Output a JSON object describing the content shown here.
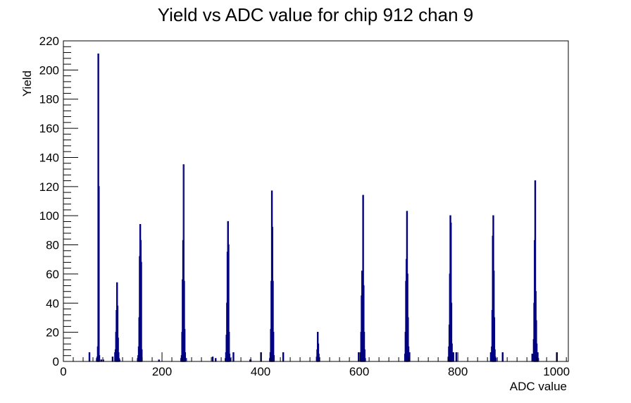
{
  "chart_data": {
    "type": "bar",
    "title": "Yield vs ADC value for chip 912 chan 9",
    "xlabel": "ADC value",
    "ylabel": "Yield",
    "xlim": [
      0,
      1024
    ],
    "ylim": [
      0,
      220
    ],
    "x_ticks": [
      0,
      200,
      400,
      600,
      800,
      1000
    ],
    "y_ticks": [
      0,
      20,
      40,
      60,
      80,
      100,
      120,
      140,
      160,
      180,
      200,
      220
    ],
    "grid": false,
    "legend": "none",
    "line_color": "#000080",
    "series": [
      {
        "x": [
          52,
          67,
          68,
          69,
          70,
          71,
          72,
          76,
          80,
          99,
          104,
          105,
          106,
          107,
          108,
          109,
          110,
          111,
          112,
          113,
          150,
          151,
          152,
          153,
          154,
          155,
          156,
          157,
          158,
          193,
          238,
          239,
          240,
          241,
          242,
          243,
          244,
          245,
          246,
          248,
          302,
          308,
          328,
          329,
          330,
          331,
          332,
          333,
          334,
          335,
          336,
          337,
          344,
          378,
          379,
          400,
          418,
          419,
          420,
          421,
          422,
          423,
          424,
          425,
          426,
          445,
          513,
          514,
          515,
          516,
          517,
          518,
          598,
          602,
          603,
          604,
          605,
          606,
          607,
          608,
          609,
          610,
          611,
          692,
          693,
          694,
          695,
          696,
          697,
          698,
          699,
          701,
          780,
          781,
          782,
          783,
          784,
          785,
          786,
          787,
          788,
          790,
          796,
          866,
          868,
          869,
          870,
          871,
          872,
          873,
          874,
          875,
          876,
          890,
          950,
          953,
          954,
          955,
          956,
          957,
          958,
          959,
          960,
          961,
          962,
          1000
        ],
        "values": [
          6,
          2,
          3,
          10,
          211,
          120,
          4,
          1,
          1,
          3,
          6,
          8,
          20,
          35,
          54,
          38,
          16,
          6,
          2,
          1,
          2,
          4,
          10,
          30,
          72,
          94,
          83,
          68,
          8,
          1,
          2,
          4,
          20,
          56,
          83,
          135,
          55,
          22,
          6,
          2,
          3,
          2,
          2,
          6,
          18,
          40,
          75,
          96,
          80,
          20,
          5,
          2,
          6,
          1,
          1,
          6,
          2,
          6,
          22,
          55,
          117,
          92,
          55,
          20,
          4,
          6,
          3,
          8,
          20,
          12,
          5,
          2,
          6,
          6,
          20,
          45,
          62,
          26,
          114,
          52,
          20,
          8,
          2,
          5,
          20,
          55,
          70,
          103,
          60,
          30,
          10,
          6,
          3,
          10,
          25,
          60,
          100,
          95,
          40,
          12,
          6,
          6,
          6,
          6,
          10,
          35,
          86,
          100,
          62,
          30,
          8,
          3,
          2,
          6,
          5,
          15,
          40,
          83,
          124,
          48,
          28,
          12,
          4,
          6,
          2,
          6
        ]
      }
    ]
  }
}
